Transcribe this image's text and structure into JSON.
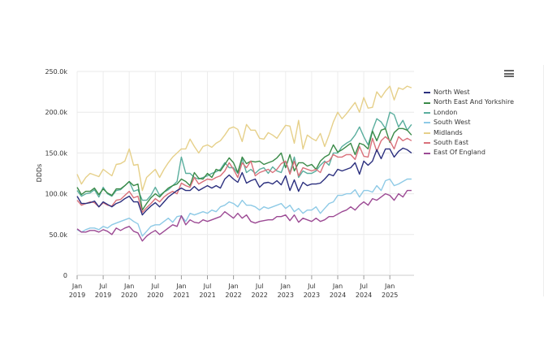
{
  "chart_data": {
    "type": "line",
    "title": "",
    "xlabel": "",
    "ylabel": "DDDs",
    "ylim": [
      0,
      250000
    ],
    "y_ticks": [
      "0",
      "50.0k",
      "100.0k",
      "150.0k",
      "200.0k",
      "250.0k"
    ],
    "x_ticks": [
      {
        "month": "Jan",
        "year": "2019"
      },
      {
        "month": "Jul",
        "year": "2019"
      },
      {
        "month": "Jan",
        "year": "2020"
      },
      {
        "month": "Jul",
        "year": "2020"
      },
      {
        "month": "Jan",
        "year": "2021"
      },
      {
        "month": "Jul",
        "year": "2021"
      },
      {
        "month": "Jan",
        "year": "2022"
      },
      {
        "month": "Jul",
        "year": "2022"
      },
      {
        "month": "Jan",
        "year": "2023"
      },
      {
        "month": "Jul",
        "year": "2023"
      },
      {
        "month": "Jan",
        "year": "2024"
      },
      {
        "month": "Jul",
        "year": "2024"
      },
      {
        "month": "Jan",
        "year": "2025"
      }
    ],
    "x_start": "2019-01",
    "x_end": "2025-06",
    "x_frequency": "monthly",
    "grid": true,
    "legend_position": "right",
    "value_unit": "thousands",
    "series": [
      {
        "name": "North West",
        "color": "#2b2f7e",
        "values": [
          97,
          88,
          88,
          89,
          91,
          84,
          90,
          87,
          84,
          88,
          90,
          94,
          97,
          90,
          90,
          74,
          80,
          85,
          89,
          84,
          90,
          96,
          100,
          104,
          107,
          104,
          104,
          109,
          104,
          107,
          110,
          107,
          110,
          107,
          118,
          123,
          118,
          114,
          126,
          113,
          116,
          118,
          108,
          113,
          114,
          112,
          116,
          111,
          122,
          104,
          117,
          103,
          114,
          110,
          112,
          112,
          113,
          118,
          124,
          122,
          130,
          128,
          130,
          132,
          138,
          124,
          140,
          135,
          140,
          154,
          143,
          155,
          155,
          145,
          152,
          156,
          154,
          150
        ]
      },
      {
        "name": "North East And Yorkshire",
        "color": "#3a8a48",
        "values": [
          108,
          99,
          103,
          103,
          107,
          99,
          106,
          101,
          98,
          106,
          106,
          110,
          115,
          110,
          112,
          80,
          88,
          95,
          100,
          96,
          102,
          107,
          110,
          112,
          118,
          115,
          110,
          126,
          119,
          118,
          125,
          120,
          130,
          128,
          136,
          144,
          138,
          126,
          145,
          137,
          140,
          139,
          140,
          136,
          138,
          140,
          144,
          150,
          132,
          148,
          128,
          138,
          138,
          134,
          136,
          130,
          140,
          145,
          148,
          160,
          151,
          154,
          158,
          162,
          148,
          162,
          160,
          155,
          177,
          165,
          178,
          180,
          163,
          175,
          180,
          180,
          178,
          172
        ]
      },
      {
        "name": "London",
        "color": "#5aae9e",
        "values": [
          104,
          97,
          100,
          101,
          105,
          96,
          108,
          100,
          97,
          104,
          105,
          110,
          115,
          103,
          105,
          92,
          92,
          98,
          108,
          98,
          102,
          105,
          110,
          115,
          145,
          125,
          125,
          120,
          118,
          120,
          122,
          125,
          127,
          130,
          138,
          132,
          132,
          125,
          143,
          126,
          130,
          125,
          130,
          132,
          125,
          133,
          128,
          126,
          140,
          126,
          145,
          120,
          128,
          125,
          125,
          128,
          135,
          140,
          135,
          150,
          150,
          158,
          162,
          165,
          172,
          182,
          170,
          160,
          178,
          192,
          188,
          180,
          200,
          197,
          182,
          190,
          178,
          185
        ]
      },
      {
        "name": "South West",
        "color": "#8ecae6",
        "values": [
          56,
          53,
          56,
          58,
          58,
          56,
          60,
          58,
          62,
          64,
          66,
          68,
          70,
          66,
          63,
          48,
          54,
          60,
          62,
          62,
          66,
          70,
          65,
          72,
          73,
          66,
          76,
          74,
          76,
          78,
          76,
          80,
          78,
          84,
          86,
          90,
          88,
          84,
          92,
          86,
          86,
          84,
          80,
          84,
          82,
          84,
          86,
          88,
          82,
          86,
          78,
          82,
          76,
          80,
          80,
          84,
          76,
          82,
          88,
          90,
          98,
          98,
          100,
          100,
          105,
          96,
          104,
          104,
          102,
          110,
          104,
          116,
          118,
          110,
          112,
          115,
          118,
          118
        ]
      },
      {
        "name": "Midlands",
        "color": "#e6d08a",
        "values": [
          124,
          112,
          120,
          125,
          123,
          121,
          130,
          126,
          122,
          136,
          137,
          140,
          155,
          135,
          136,
          104,
          120,
          125,
          130,
          120,
          130,
          138,
          145,
          150,
          155,
          155,
          167,
          158,
          150,
          158,
          160,
          157,
          162,
          165,
          172,
          180,
          182,
          179,
          164,
          185,
          178,
          178,
          168,
          167,
          175,
          172,
          168,
          176,
          184,
          183,
          162,
          190,
          155,
          172,
          168,
          165,
          174,
          158,
          172,
          188,
          200,
          192,
          198,
          205,
          212,
          200,
          218,
          205,
          206,
          225,
          218,
          226,
          232,
          215,
          230,
          228,
          232,
          230
        ]
      },
      {
        "name": "South East",
        "color": "#d9707a",
        "values": [
          92,
          86,
          88,
          90,
          89,
          84,
          89,
          86,
          85,
          92,
          93,
          98,
          103,
          95,
          97,
          77,
          83,
          88,
          94,
          90,
          96,
          100,
          103,
          100,
          113,
          110,
          108,
          120,
          112,
          115,
          118,
          117,
          120,
          122,
          128,
          138,
          130,
          120,
          138,
          132,
          140,
          122,
          126,
          128,
          130,
          126,
          130,
          137,
          140,
          124,
          140,
          122,
          132,
          130,
          128,
          130,
          126,
          138,
          140,
          148,
          145,
          145,
          148,
          148,
          142,
          158,
          146,
          145,
          168,
          152,
          165,
          170,
          165,
          155,
          170,
          165,
          168,
          165
        ]
      },
      {
        "name": "East Of England",
        "color": "#9c4a94",
        "values": [
          57,
          53,
          53,
          55,
          55,
          53,
          56,
          54,
          50,
          58,
          55,
          58,
          60,
          54,
          52,
          42,
          48,
          52,
          55,
          50,
          54,
          58,
          62,
          60,
          73,
          62,
          68,
          65,
          64,
          68,
          66,
          68,
          70,
          72,
          78,
          74,
          70,
          76,
          70,
          74,
          66,
          64,
          66,
          67,
          68,
          68,
          72,
          72,
          74,
          67,
          74,
          65,
          70,
          68,
          66,
          70,
          66,
          68,
          72,
          72,
          75,
          78,
          80,
          84,
          80,
          86,
          90,
          86,
          94,
          92,
          96,
          100,
          98,
          92,
          100,
          96,
          104,
          104
        ]
      }
    ]
  },
  "menu_icon": "hamburger-menu-icon"
}
